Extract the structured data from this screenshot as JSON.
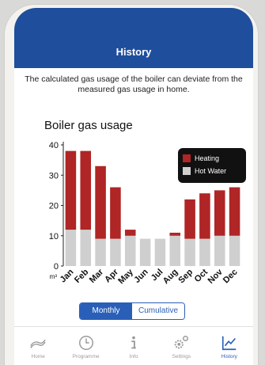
{
  "header": {
    "title": "History"
  },
  "notice": "The calculated gas usage of the boiler can deviate from the measured gas usage in home.",
  "section_title": "Boiler gas usage",
  "chart_data": {
    "type": "bar",
    "stacked": true,
    "categories": [
      "Jan",
      "Feb",
      "Mar",
      "Apr",
      "May",
      "Jun",
      "Jul",
      "Aug",
      "Sep",
      "Oct",
      "Nov",
      "Dec"
    ],
    "series": [
      {
        "name": "Hot Water",
        "color": "#cfcfcf",
        "values": [
          12,
          12,
          9,
          9,
          10,
          9,
          9,
          10,
          9,
          9,
          10,
          10
        ]
      },
      {
        "name": "Heating",
        "color": "#b02525",
        "values": [
          26,
          26,
          24,
          17,
          2,
          0,
          0,
          1,
          13,
          15,
          15,
          16
        ]
      }
    ],
    "yticks": [
      0,
      10,
      20,
      30,
      40
    ],
    "ylim": [
      0,
      40
    ],
    "ylabel": "m³",
    "legend_position": "top-right",
    "grid": false
  },
  "legend": [
    {
      "label": "Heating",
      "color": "#b02525"
    },
    {
      "label": "Hot Water",
      "color": "#cfcfcf"
    }
  ],
  "toggle": {
    "monthly": "Monthly",
    "cumulative": "Cumulative"
  },
  "tabs": [
    {
      "label": "Home",
      "icon": "home-icon"
    },
    {
      "label": "Programme",
      "icon": "clock-icon"
    },
    {
      "label": "Info",
      "icon": "info-icon"
    },
    {
      "label": "Settings",
      "icon": "gear-icon"
    },
    {
      "label": "History",
      "icon": "history-chart-icon"
    }
  ]
}
